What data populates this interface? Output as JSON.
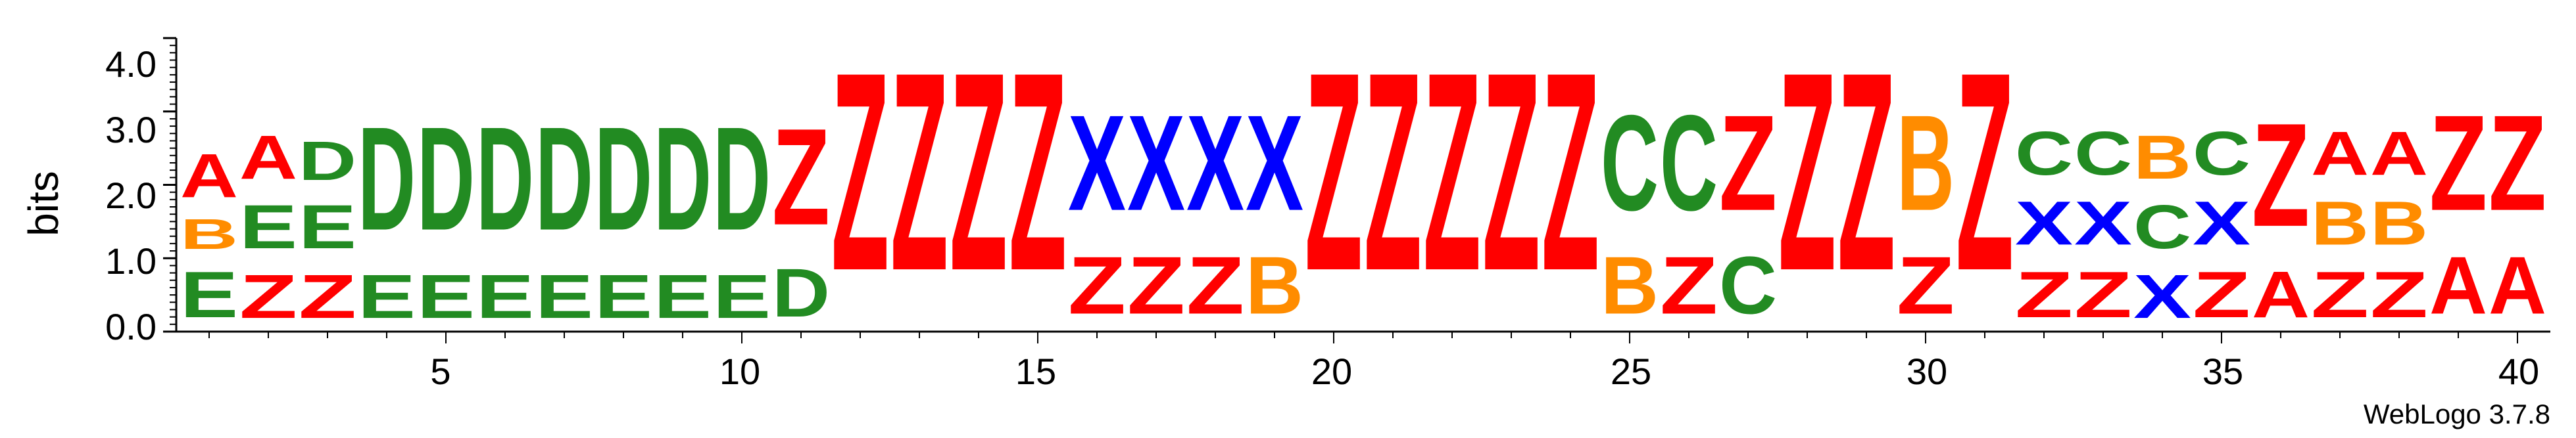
{
  "chart_data": {
    "type": "sequence-logo",
    "ylabel": "bits",
    "ylim": [
      0,
      4.0
    ],
    "y_ticks": [
      "0.0",
      "1.0",
      "2.0",
      "3.0",
      "4.0"
    ],
    "x_tick_labels": [
      "5",
      "10",
      "15",
      "20",
      "25",
      "30",
      "35",
      "40"
    ],
    "x_tick_positions": [
      5,
      10,
      15,
      20,
      25,
      30,
      35,
      40
    ],
    "footer": "WebLogo 3.7.8",
    "colors": {
      "A": "#ff0000",
      "Z": "#ff0000",
      "B": "#ff8c00",
      "C": "#228b22",
      "D": "#228b22",
      "E": "#228b22",
      "X": "#0000ff"
    },
    "positions": [
      {
        "pos": 1,
        "stack": [
          [
            "E",
            1.0
          ],
          [
            "B",
            0.65
          ],
          [
            "A",
            0.95
          ]
        ]
      },
      {
        "pos": 2,
        "stack": [
          [
            "Z",
            0.95
          ],
          [
            "E",
            0.95
          ],
          [
            "A",
            0.95
          ]
        ]
      },
      {
        "pos": 3,
        "stack": [
          [
            "Z",
            0.95
          ],
          [
            "E",
            0.95
          ],
          [
            "D",
            0.85
          ]
        ]
      },
      {
        "pos": 4,
        "stack": [
          [
            "E",
            0.95
          ],
          [
            "D",
            2.25
          ]
        ]
      },
      {
        "pos": 5,
        "stack": [
          [
            "E",
            0.95
          ],
          [
            "D",
            2.25
          ]
        ]
      },
      {
        "pos": 6,
        "stack": [
          [
            "E",
            0.95
          ],
          [
            "D",
            2.25
          ]
        ]
      },
      {
        "pos": 7,
        "stack": [
          [
            "E",
            0.95
          ],
          [
            "D",
            2.25
          ]
        ]
      },
      {
        "pos": 8,
        "stack": [
          [
            "E",
            0.95
          ],
          [
            "D",
            2.25
          ]
        ]
      },
      {
        "pos": 9,
        "stack": [
          [
            "E",
            0.95
          ],
          [
            "D",
            2.25
          ]
        ]
      },
      {
        "pos": 10,
        "stack": [
          [
            "E",
            0.95
          ],
          [
            "D",
            2.25
          ]
        ]
      },
      {
        "pos": 11,
        "stack": [
          [
            "D",
            1.05
          ],
          [
            "Z",
            2.1
          ]
        ]
      },
      {
        "pos": 12,
        "stack": [
          [
            "Z",
            4.32
          ]
        ]
      },
      {
        "pos": 13,
        "stack": [
          [
            "Z",
            4.32
          ]
        ]
      },
      {
        "pos": 14,
        "stack": [
          [
            "Z",
            4.32
          ]
        ]
      },
      {
        "pos": 15,
        "stack": [
          [
            "Z",
            4.32
          ]
        ]
      },
      {
        "pos": 16,
        "stack": [
          [
            "Z",
            1.25
          ],
          [
            "X",
            2.08
          ]
        ]
      },
      {
        "pos": 17,
        "stack": [
          [
            "Z",
            1.25
          ],
          [
            "X",
            2.08
          ]
        ]
      },
      {
        "pos": 18,
        "stack": [
          [
            "Z",
            1.25
          ],
          [
            "X",
            2.08
          ]
        ]
      },
      {
        "pos": 19,
        "stack": [
          [
            "B",
            1.25
          ],
          [
            "X",
            2.08
          ]
        ]
      },
      {
        "pos": 20,
        "stack": [
          [
            "Z",
            4.32
          ]
        ]
      },
      {
        "pos": 21,
        "stack": [
          [
            "Z",
            4.32
          ]
        ]
      },
      {
        "pos": 22,
        "stack": [
          [
            "Z",
            4.32
          ]
        ]
      },
      {
        "pos": 23,
        "stack": [
          [
            "Z",
            4.32
          ]
        ]
      },
      {
        "pos": 24,
        "stack": [
          [
            "Z",
            4.32
          ]
        ]
      },
      {
        "pos": 25,
        "stack": [
          [
            "B",
            1.25
          ],
          [
            "C",
            2.08
          ]
        ]
      },
      {
        "pos": 26,
        "stack": [
          [
            "Z",
            1.25
          ],
          [
            "C",
            2.08
          ]
        ]
      },
      {
        "pos": 27,
        "stack": [
          [
            "C",
            1.25
          ],
          [
            "Z",
            2.08
          ]
        ]
      },
      {
        "pos": 28,
        "stack": [
          [
            "Z",
            4.32
          ]
        ]
      },
      {
        "pos": 29,
        "stack": [
          [
            "Z",
            4.32
          ]
        ]
      },
      {
        "pos": 30,
        "stack": [
          [
            "Z",
            1.25
          ],
          [
            "B",
            2.08
          ]
        ]
      },
      {
        "pos": 31,
        "stack": [
          [
            "Z",
            4.32
          ]
        ]
      },
      {
        "pos": 32,
        "stack": [
          [
            "Z",
            1.0
          ],
          [
            "X",
            0.95
          ],
          [
            "C",
            0.95
          ]
        ]
      },
      {
        "pos": 33,
        "stack": [
          [
            "Z",
            1.0
          ],
          [
            "X",
            0.95
          ],
          [
            "C",
            0.95
          ]
        ]
      },
      {
        "pos": 34,
        "stack": [
          [
            "X",
            0.95
          ],
          [
            "C",
            0.95
          ],
          [
            "B",
            0.95
          ]
        ]
      },
      {
        "pos": 35,
        "stack": [
          [
            "Z",
            1.0
          ],
          [
            "X",
            0.95
          ],
          [
            "C",
            0.95
          ]
        ]
      },
      {
        "pos": 36,
        "stack": [
          [
            "A",
            1.0
          ],
          [
            "Z",
            2.25
          ]
        ]
      },
      {
        "pos": 37,
        "stack": [
          [
            "Z",
            1.0
          ],
          [
            "B",
            0.95
          ],
          [
            "A",
            0.95
          ]
        ]
      },
      {
        "pos": 38,
        "stack": [
          [
            "Z",
            1.0
          ],
          [
            "B",
            0.95
          ],
          [
            "A",
            0.95
          ]
        ]
      },
      {
        "pos": 39,
        "stack": [
          [
            "A",
            1.25
          ],
          [
            "Z",
            2.08
          ]
        ]
      },
      {
        "pos": 40,
        "stack": [
          [
            "A",
            1.25
          ],
          [
            "Z",
            2.08
          ]
        ]
      }
    ]
  }
}
